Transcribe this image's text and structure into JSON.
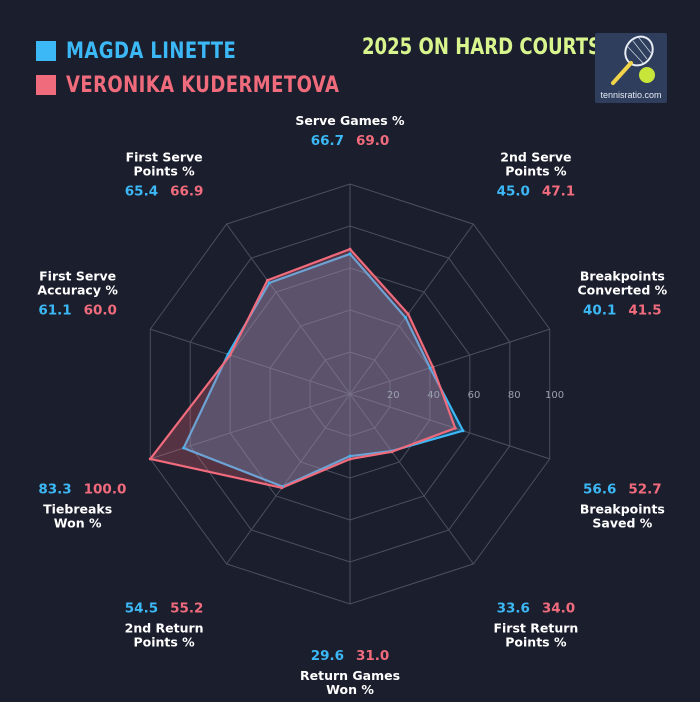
{
  "chart_data": {
    "type": "radar",
    "subtitle": "2025 ON HARD COURTS",
    "logo_text": "tennisratio.com",
    "axis_max": 100,
    "ticks": [
      "20",
      "40",
      "60",
      "80",
      "100"
    ],
    "axes": [
      {
        "label": [
          "Serve Games %"
        ]
      },
      {
        "label": [
          "2nd Serve",
          "Points %"
        ]
      },
      {
        "label": [
          "Breakpoints",
          "Converted %"
        ]
      },
      {
        "label": [
          "Breakpoints",
          "Saved %"
        ]
      },
      {
        "label": [
          "First Return",
          "Points %"
        ]
      },
      {
        "label": [
          "Return Games",
          "Won %"
        ]
      },
      {
        "label": [
          "2nd Return",
          "Points %"
        ]
      },
      {
        "label": [
          "Tiebreaks",
          "Won %"
        ]
      },
      {
        "label": [
          "First Serve",
          "Accuracy %"
        ]
      },
      {
        "label": [
          "First Serve",
          "Points %"
        ]
      }
    ],
    "series": [
      {
        "name": "MAGDA LINETTE",
        "color": "#3bb8f5",
        "values": [
          66.7,
          45.0,
          40.1,
          56.6,
          33.6,
          29.6,
          54.5,
          83.3,
          61.1,
          65.4
        ],
        "labels": [
          "66.7",
          "45.0",
          "40.1",
          "56.6",
          "33.6",
          "29.6",
          "54.5",
          "83.3",
          "61.1",
          "65.4"
        ]
      },
      {
        "name": "VERONIKA KUDERMETOVA",
        "color": "#f06b7c",
        "values": [
          69.0,
          47.1,
          41.5,
          52.7,
          34.0,
          31.0,
          55.2,
          100.0,
          60.0,
          66.9
        ],
        "labels": [
          "69.0",
          "47.1",
          "41.5",
          "52.7",
          "34.0",
          "31.0",
          "55.2",
          "100.0",
          "60.0",
          "66.9"
        ]
      }
    ]
  }
}
